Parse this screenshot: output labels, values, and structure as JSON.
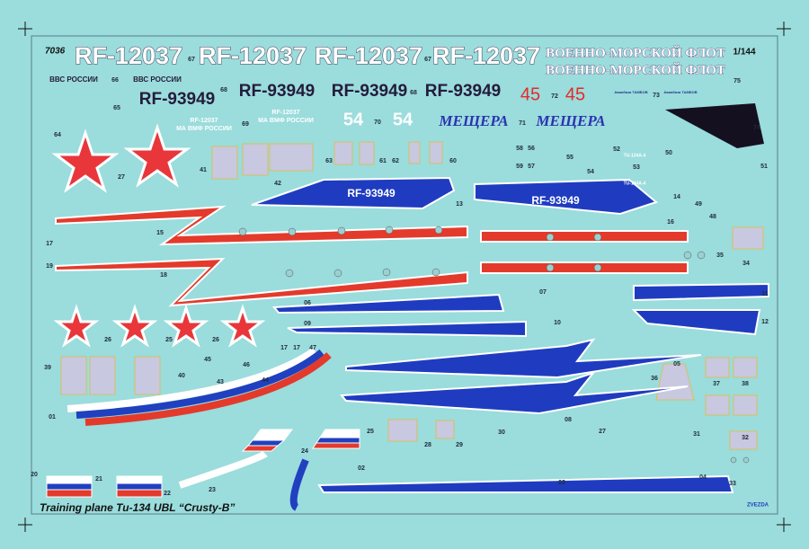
{
  "sheet": {
    "code": "7036",
    "scale": "1/144",
    "caption": "Training plane Tu-134 UBL “Crusty-B”",
    "brand": "ZVEZDA"
  },
  "registrations_large": [
    "RF-12037",
    "RF-12037",
    "RF-12037",
    "RF-12037"
  ],
  "navy_inscriptions": [
    "ВОЕННО-МОРСКОЙ ФЛОТ",
    "ВОЕННО-МОРСКОЙ ФЛОТ"
  ],
  "air_force_inscriptions": [
    "ВВС РОССИИ",
    "ВВС РОССИИ"
  ],
  "registrations_dark": [
    "RF-93949",
    "RF-93949",
    "RF-93949",
    "RF-93949"
  ],
  "side_numbers_red": [
    "45",
    "45"
  ],
  "side_numbers_white": [
    "54",
    "54"
  ],
  "base_inscriptions": [
    "Авиабаза ТАМБОВ",
    "Авиабаза ТАМБОВ"
  ],
  "small_registrations": [
    {
      "registration": "RF-12037",
      "inscription": "МА ВМФ РОССИИ"
    },
    {
      "registration": "RF-12037",
      "inscription": "МА ВМФ РОССИИ"
    }
  ],
  "aircraft_names": [
    "МЕЩЕРА",
    "МЕЩЕРА"
  ],
  "fin_registrations": [
    "RF-93949",
    "RF-93949"
  ],
  "type_labels": [
    "TU-134A-4",
    "TU-134A-4"
  ],
  "decal_numbers": [
    "67",
    "67",
    "66",
    "75",
    "68",
    "68",
    "72",
    "73",
    "65",
    "64",
    "69",
    "70",
    "71",
    "74",
    "27",
    "63",
    "61",
    "62",
    "60",
    "41",
    "42",
    "58",
    "56",
    "59",
    "57",
    "55",
    "54",
    "52",
    "50",
    "53",
    "51",
    "49",
    "48",
    "14",
    "16",
    "13",
    "15",
    "17",
    "19",
    "18",
    "35",
    "34",
    "07",
    "11",
    "06",
    "09",
    "10",
    "12",
    "26",
    "25",
    "26",
    "17",
    "17",
    "47",
    "45",
    "46",
    "39",
    "40",
    "43",
    "44",
    "05",
    "36",
    "37",
    "38",
    "01",
    "08",
    "25",
    "28",
    "29",
    "30",
    "27",
    "31",
    "32",
    "24",
    "21",
    "22",
    "23",
    "02",
    "03",
    "04",
    "33",
    "20"
  ]
}
